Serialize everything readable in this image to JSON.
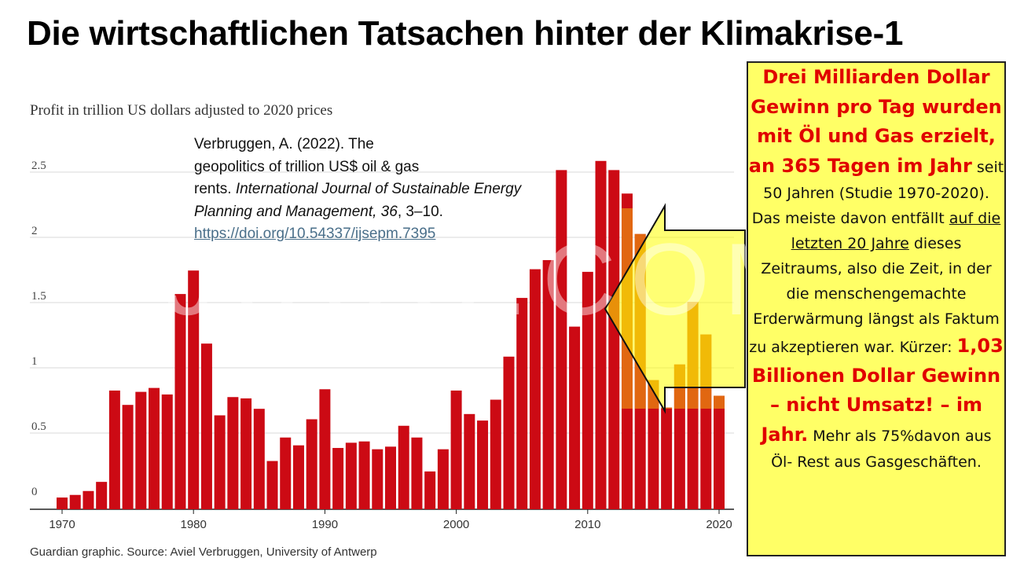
{
  "slide_title": "Die wirtschaftlichen Tatsachen hinter der Klimakrise-1",
  "watermark": "JUUO.COM",
  "colors": {
    "bar_red": "#cc0a14",
    "bar_orange": "#ec9a10",
    "callout_yellow": "#ffff66",
    "accent_red": "#e00000"
  },
  "citation": {
    "line1": "Verbruggen, A. (2022).  The",
    "line2": "geopolitics of trillion US$ oil & gas",
    "line3": "rents.",
    "journal": "International Journal of Sustainable Energy Planning and Management, 36",
    "pages": ", 3–10.",
    "doi": "https://doi.org/10.54337/ijsepm.7395"
  },
  "callout": {
    "headline": "Drei Milliarden Dollar Gewinn pro Tag wurden mit Öl und Gas erzielt, an 365 Tagen im Jahr",
    "text1": "seit 50 Jahren (Studie 1970-2020). Das meiste davon entfällt",
    "underlined": "auf die letzten 20 Jahre",
    "text2": "dieses Zeitraums, also die Zeit, in der die menschengemachte Erderwärmung längst als Faktum zu akzeptieren war.",
    "kurzer": "Kürzer:",
    "highlight": "1,03 Billionen Dollar Gewinn – nicht Umsatz! – im Jahr.",
    "footer": "Mehr als 75%davon aus Öl- Rest aus Gasgeschäften."
  },
  "chart_data": {
    "type": "bar",
    "title": "Profit in trillion US dollars adjusted to 2020 prices",
    "source": "Guardian graphic. Source: Aviel Verbruggen, University of Antwerp",
    "xlabel": "",
    "ylabel": "",
    "ylim": [
      0,
      2.6
    ],
    "y_ticks": [
      "0",
      "0.5",
      "1",
      "1.5",
      "2",
      "2.5"
    ],
    "x_ticks": [
      "1970",
      "1980",
      "1990",
      "2000",
      "2010",
      "2020"
    ],
    "grid": true,
    "categories": [
      "1970",
      "1971",
      "1972",
      "1973",
      "1974",
      "1975",
      "1976",
      "1977",
      "1978",
      "1979",
      "1980",
      "1981",
      "1982",
      "1983",
      "1984",
      "1985",
      "1986",
      "1987",
      "1988",
      "1989",
      "1990",
      "1991",
      "1992",
      "1993",
      "1994",
      "1995",
      "1996",
      "1997",
      "1998",
      "1999",
      "2000",
      "2001",
      "2002",
      "2003",
      "2004",
      "2005",
      "2006",
      "2007",
      "2008",
      "2009",
      "2010",
      "2011",
      "2012",
      "2013",
      "2014",
      "2015",
      "2016",
      "2017",
      "2018",
      "2019",
      "2020"
    ],
    "values": [
      0.09,
      0.11,
      0.14,
      0.21,
      0.91,
      0.8,
      0.9,
      0.93,
      0.88,
      1.65,
      1.83,
      1.27,
      0.72,
      0.86,
      0.85,
      0.77,
      0.37,
      0.55,
      0.49,
      0.69,
      0.92,
      0.47,
      0.51,
      0.52,
      0.46,
      0.48,
      0.64,
      0.55,
      0.29,
      0.46,
      0.91,
      0.73,
      0.68,
      0.84,
      1.17,
      1.62,
      1.84,
      1.91,
      2.6,
      1.4,
      1.82,
      2.67,
      2.6,
      2.42,
      2.11,
      0.99,
      0.78,
      1.11,
      1.59,
      1.34,
      0.87
    ]
  }
}
